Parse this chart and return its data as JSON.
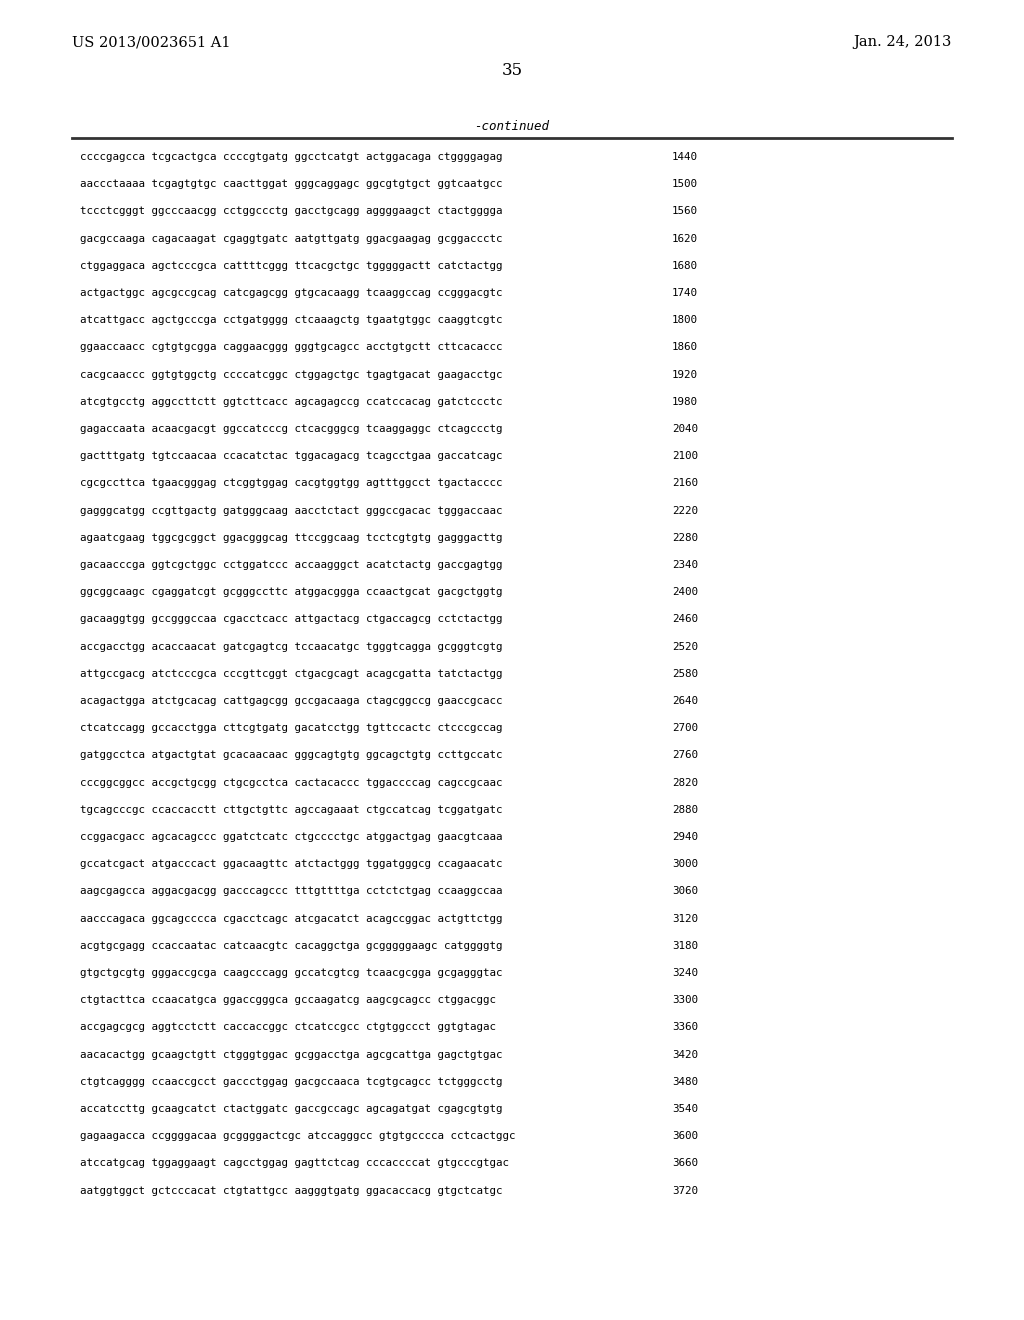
{
  "header_left": "US 2013/0023651 A1",
  "header_right": "Jan. 24, 2013",
  "page_number": "35",
  "continued_label": "-continued",
  "background_color": "#ffffff",
  "text_color": "#000000",
  "sequence_lines": [
    [
      "ccccgagcca tcgcactgca ccccgtgatg ggcctcatgt actggacaga ctggggagag",
      "1440"
    ],
    [
      "aaccctaaaa tcgagtgtgc caacttggat gggcaggagc ggcgtgtgct ggtcaatgcc",
      "1500"
    ],
    [
      "tccctcgggt ggcccaacgg cctggccctg gacctgcagg aggggaagct ctactgggga",
      "1560"
    ],
    [
      "gacgccaaga cagacaagat cgaggtgatc aatgttgatg ggacgaagag gcggaccctc",
      "1620"
    ],
    [
      "ctggaggaca agctcccgca cattttcggg ttcacgctgc tgggggactt catctactgg",
      "1680"
    ],
    [
      "actgactggc agcgccgcag catcgagcgg gtgcacaagg tcaaggccag ccgggacgtc",
      "1740"
    ],
    [
      "atcattgacc agctgcccga cctgatgggg ctcaaagctg tgaatgtggc caaggtcgtc",
      "1800"
    ],
    [
      "ggaaccaacc cgtgtgcgga caggaacggg gggtgcagcc acctgtgctt cttcacaccc",
      "1860"
    ],
    [
      "cacgcaaccc ggtgtggctg ccccatcggc ctggagctgc tgagtgacat gaagacctgc",
      "1920"
    ],
    [
      "atcgtgcctg aggccttctt ggtcttcacc agcagagccg ccatccacag gatctccctc",
      "1980"
    ],
    [
      "gagaccaata acaacgacgt ggccatcccg ctcacgggcg tcaaggaggc ctcagccctg",
      "2040"
    ],
    [
      "gactttgatg tgtccaacaa ccacatctac tggacagacg tcagcctgaa gaccatcagc",
      "2100"
    ],
    [
      "cgcgccttca tgaacgggag ctcggtggag cacgtggtgg agtttggcct tgactacccc",
      "2160"
    ],
    [
      "gagggcatgg ccgttgactg gatgggcaag aacctctact gggccgacac tgggaccaac",
      "2220"
    ],
    [
      "agaatcgaag tggcgcggct ggacgggcag ttccggcaag tcctcgtgtg gagggacttg",
      "2280"
    ],
    [
      "gacaacccga ggtcgctggc cctggatccc accaagggct acatctactg gaccgagtgg",
      "2340"
    ],
    [
      "ggcggcaagc cgaggatcgt gcgggccttc atggacggga ccaactgcat gacgctggtg",
      "2400"
    ],
    [
      "gacaaggtgg gccgggccaa cgacctcacc attgactacg ctgaccagcg cctctactgg",
      "2460"
    ],
    [
      "accgacctgg acaccaacat gatcgagtcg tccaacatgc tgggtcagga gcgggtcgtg",
      "2520"
    ],
    [
      "attgccgacg atctcccgca cccgttcggt ctgacgcagt acagcgatta tatctactgg",
      "2580"
    ],
    [
      "acagactgga atctgcacag cattgagcgg gccgacaaga ctagcggccg gaaccgcacc",
      "2640"
    ],
    [
      "ctcatccagg gccacctgga cttcgtgatg gacatcctgg tgttccactc ctcccgccag",
      "2700"
    ],
    [
      "gatggcctca atgactgtat gcacaacaac gggcagtgtg ggcagctgtg ccttgccatc",
      "2760"
    ],
    [
      "cccggcggcc accgctgcgg ctgcgcctca cactacaccc tggaccccag cagccgcaac",
      "2820"
    ],
    [
      "tgcagcccgc ccaccacctt cttgctgttc agccagaaat ctgccatcag tcggatgatc",
      "2880"
    ],
    [
      "ccggacgacc agcacagccc ggatctcatc ctgcccctgc atggactgag gaacgtcaaa",
      "2940"
    ],
    [
      "gccatcgact atgacccact ggacaagttc atctactggg tggatgggcg ccagaacatc",
      "3000"
    ],
    [
      "aagcgagcca aggacgacgg gacccagccc tttgttttga cctctctgag ccaaggccaa",
      "3060"
    ],
    [
      "aacccagaca ggcagcccca cgacctcagc atcgacatct acagccggac actgttctgg",
      "3120"
    ],
    [
      "acgtgcgagg ccaccaatac catcaacgtc cacaggctga gcgggggaagc catggggtg",
      "3180"
    ],
    [
      "gtgctgcgtg gggaccgcga caagcccagg gccatcgtcg tcaacgcgga gcgagggtac",
      "3240"
    ],
    [
      "ctgtacttca ccaacatgca ggaccgggca gccaagatcg aagcgcagcc ctggacggc",
      "3300"
    ],
    [
      "accgagcgcg aggtcctctt caccaccggc ctcatccgcc ctgtggccct ggtgtagac",
      "3360"
    ],
    [
      "aacacactgg gcaagctgtt ctgggtggac gcggacctga agcgcattga gagctgtgac",
      "3420"
    ],
    [
      "ctgtcagggg ccaaccgcct gaccctggag gacgccaaca tcgtgcagcc tctgggcctg",
      "3480"
    ],
    [
      "accatccttg gcaagcatct ctactggatc gaccgccagc agcagatgat cgagcgtgtg",
      "3540"
    ],
    [
      "gagaagacca ccggggacaa gcggggactcgc atccagggcc gtgtgcccca cctcactggc",
      "3600"
    ],
    [
      "atccatgcag tggaggaagt cagcctggag gagttctcag cccaccccat gtgcccgtgac",
      "3660"
    ],
    [
      "aatggtggct gctcccacat ctgtattgcc aagggtgatg ggacaccacg gtgctcatgc",
      "3720"
    ]
  ]
}
